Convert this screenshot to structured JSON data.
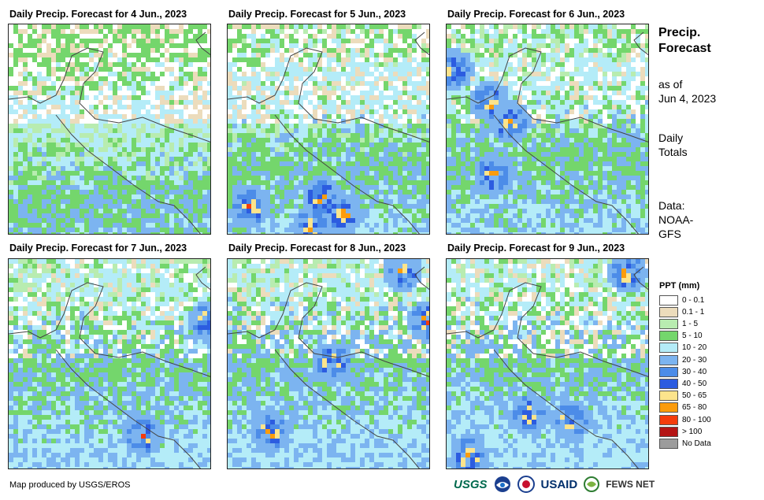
{
  "panels": [
    {
      "title": "Daily Precip. Forecast for 4 Jun., 2023"
    },
    {
      "title": "Daily Precip. Forecast for 5 Jun., 2023"
    },
    {
      "title": "Daily Precip. Forecast for 6 Jun., 2023"
    },
    {
      "title": "Daily Precip. Forecast for 7 Jun., 2023"
    },
    {
      "title": "Daily Precip. Forecast for 8 Jun., 2023"
    },
    {
      "title": "Daily Precip. Forecast for 9 Jun., 2023"
    }
  ],
  "sidebar": {
    "title_line1": "Precip.",
    "title_line2": "Forecast",
    "asof_line1": "as of",
    "asof_line2": "Jun 4, 2023",
    "daily_line1": "Daily",
    "daily_line2": "Totals",
    "data_line1": "Data:",
    "data_line2": "NOAA-",
    "data_line3": "GFS"
  },
  "legend": {
    "title": "PPT (mm)",
    "items": [
      {
        "label": "0 - 0.1",
        "color": "#ffffff"
      },
      {
        "label": "0.1 - 1",
        "color": "#ecdcbc"
      },
      {
        "label": "1 - 5",
        "color": "#b8ecb0"
      },
      {
        "label": "5 - 10",
        "color": "#74d66c"
      },
      {
        "label": "10 - 20",
        "color": "#b4ecf8"
      },
      {
        "label": "20 - 30",
        "color": "#7cb4f0"
      },
      {
        "label": "30 - 40",
        "color": "#4c8ce8"
      },
      {
        "label": "40 - 50",
        "color": "#2c5ce0"
      },
      {
        "label": "50 - 65",
        "color": "#fce48c"
      },
      {
        "label": "65 - 80",
        "color": "#fc9c0c"
      },
      {
        "label": "80 - 100",
        "color": "#f43c0c"
      },
      {
        "label": "> 100",
        "color": "#b41414"
      },
      {
        "label": "No Data",
        "color": "#9c9c9c"
      }
    ]
  },
  "footer": {
    "credit": "Map produced by USGS/EROS"
  },
  "logos": {
    "usgs": "USGS",
    "usaid": "USAID",
    "fewsnet": "FEWS NET"
  }
}
